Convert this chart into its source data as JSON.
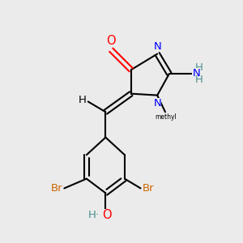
{
  "background_color": "#ebebeb",
  "figsize": [
    3.0,
    3.0
  ],
  "dpi": 100,
  "colors": {
    "bond": "black",
    "O": "#ff0000",
    "N": "#0000ff",
    "NH": "#4a9090",
    "Br": "#cc6600",
    "H": "#4a9090",
    "methyl": "black"
  },
  "font_size": 9.5
}
